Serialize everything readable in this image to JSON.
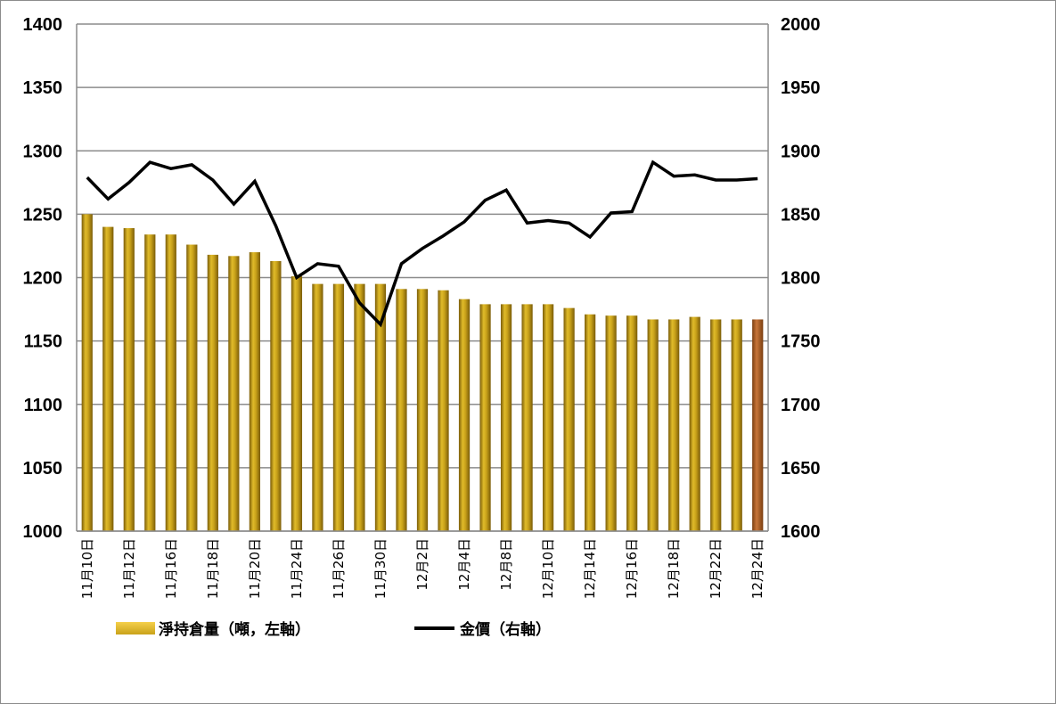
{
  "chart_data": {
    "type": "bar+line",
    "x_labels_shown": [
      "11月10日",
      "11月12日",
      "11月16日",
      "11月18日",
      "11月20日",
      "11月24日",
      "11月26日",
      "11月30日",
      "12月2日",
      "12月4日",
      "12月8日",
      "12月10日",
      "12月14日",
      "12月16日",
      "12月18日",
      "12月22日",
      "12月24日"
    ],
    "y_left": {
      "ylim": [
        1000,
        1400
      ],
      "ticks": [
        "1000",
        "1050",
        "1100",
        "1150",
        "1200",
        "1250",
        "1300",
        "1350",
        "1400"
      ]
    },
    "y_right": {
      "ylim": [
        1600,
        2000
      ],
      "ticks": [
        "1600",
        "1650",
        "1700",
        "1750",
        "1800",
        "1850",
        "1900",
        "1950",
        "2000"
      ]
    },
    "grid": true,
    "legend_position": "bottom",
    "series": [
      {
        "name": "淨持倉量（噸，左軸）",
        "type": "bar",
        "axis": "left",
        "color": "#c9a21a",
        "last_bar_color": "#b5651d",
        "values": [
          1250,
          1240,
          1239,
          1234,
          1234,
          1226,
          1218,
          1217,
          1220,
          1213,
          1201,
          1195,
          1195,
          1195,
          1195,
          1191,
          1191,
          1190,
          1183,
          1179,
          1179,
          1179,
          1179,
          1176,
          1171,
          1170,
          1170,
          1167,
          1167,
          1169,
          1167,
          1167,
          1167
        ]
      },
      {
        "name": "金價（右軸）",
        "type": "line",
        "axis": "right",
        "color": "#000000",
        "values": [
          1879,
          1862,
          1875,
          1891,
          1886,
          1889,
          1877,
          1858,
          1876,
          1841,
          1800,
          1811,
          1809,
          1780,
          1763,
          1811,
          1823,
          1833,
          1844,
          1861,
          1869,
          1843,
          1845,
          1843,
          1832,
          1851,
          1852,
          1891,
          1880,
          1881,
          1877,
          1877,
          1878
        ]
      }
    ]
  }
}
